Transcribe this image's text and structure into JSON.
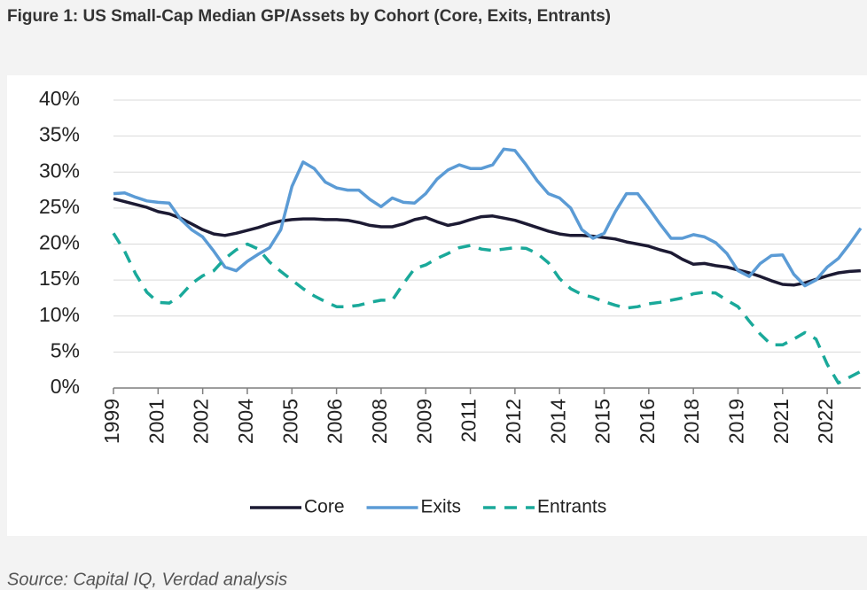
{
  "chart_data": {
    "type": "line",
    "title": "Figure 1: US Small-Cap Median GP/Assets by Cohort (Core, Exits, Entrants)",
    "source": "Source: Capital IQ, Verdad analysis",
    "categories": [
      "1999",
      null,
      null,
      null,
      "2001",
      null,
      null,
      null,
      "2002",
      null,
      null,
      null,
      "2004",
      null,
      null,
      null,
      "2005",
      null,
      null,
      null,
      "2006",
      null,
      null,
      null,
      "2008",
      null,
      null,
      null,
      "2009",
      null,
      null,
      null,
      "2011",
      null,
      null,
      null,
      "2012",
      null,
      null,
      null,
      "2014",
      null,
      null,
      null,
      "2015",
      null,
      null,
      null,
      "2016",
      null,
      null,
      null,
      "2018",
      null,
      null,
      null,
      "2019",
      null,
      null,
      null,
      "2021",
      null,
      null,
      null,
      "2022",
      null,
      null,
      null
    ],
    "series": [
      {
        "name": "Core",
        "color": "#1c1a33",
        "dash": "solid",
        "values": [
          26.3,
          25.9,
          25.5,
          25.1,
          24.5,
          24.2,
          23.6,
          22.8,
          22,
          21.4,
          21.2,
          21.5,
          21.9,
          22.3,
          22.8,
          23.2,
          23.4,
          23.5,
          23.5,
          23.4,
          23.4,
          23.3,
          23,
          22.6,
          22.4,
          22.4,
          22.8,
          23.4,
          23.7,
          23.1,
          22.6,
          22.9,
          23.4,
          23.8,
          23.9,
          23.6,
          23.3,
          22.8,
          22.3,
          21.8,
          21.4,
          21.2,
          21.2,
          21.1,
          20.9,
          20.7,
          20.3,
          20,
          19.7,
          19.2,
          18.8,
          17.9,
          17.2,
          17.3,
          17,
          16.8,
          16.4,
          16,
          15.5,
          14.9,
          14.4,
          14.3,
          14.6,
          15.1,
          15.6,
          16,
          16.2,
          16.3
        ]
      },
      {
        "name": "Exits",
        "color": "#5b9bd5",
        "dash": "solid",
        "values": [
          27,
          27.1,
          26.5,
          26,
          25.8,
          25.7,
          23.5,
          22,
          21,
          19,
          16.8,
          16.3,
          17.6,
          18.6,
          19.5,
          22,
          28,
          31.4,
          30.5,
          28.6,
          27.8,
          27.5,
          27.5,
          26.2,
          25.2,
          26.4,
          25.8,
          25.7,
          27,
          29,
          30.3,
          31,
          30.5,
          30.5,
          31,
          33.2,
          33,
          31,
          28.8,
          27,
          26.4,
          25,
          22,
          20.8,
          21.5,
          24.5,
          27,
          27,
          25,
          22.8,
          20.8,
          20.8,
          21.3,
          21,
          20.2,
          18.7,
          16.3,
          15.5,
          17.3,
          18.4,
          18.5,
          15.8,
          14.2,
          15,
          16.8,
          18,
          20,
          22.2
        ]
      },
      {
        "name": "Entrants",
        "color": "#1aa99a",
        "dash": "dashed",
        "values": [
          21.5,
          19,
          15.8,
          13.3,
          11.9,
          11.8,
          12.8,
          14.5,
          15.6,
          16.3,
          18,
          19.2,
          20,
          19.3,
          17.5,
          16.2,
          15,
          13.8,
          12.8,
          12,
          11.3,
          11.3,
          11.5,
          11.9,
          12.2,
          12.2,
          14.5,
          16.6,
          17.1,
          18,
          18.7,
          19.5,
          19.8,
          19.3,
          19.1,
          19.3,
          19.5,
          19.4,
          18.7,
          17.4,
          15.2,
          13.8,
          13,
          12.6,
          12,
          11.5,
          11.1,
          11.3,
          11.7,
          11.9,
          12.2,
          12.5,
          13.1,
          13.3,
          13.2,
          12.2,
          11.3,
          9.3,
          7.5,
          6,
          6,
          6.8,
          7.7,
          6.8,
          3.3,
          0.7,
          1.5,
          2.3
        ]
      }
    ],
    "ylim": [
      0,
      40
    ],
    "yticks": [
      {
        "value": 0,
        "label": "0%"
      },
      {
        "value": 5,
        "label": "5%"
      },
      {
        "value": 10,
        "label": "10%"
      },
      {
        "value": 15,
        "label": "15%"
      },
      {
        "value": 20,
        "label": "20%"
      },
      {
        "value": 25,
        "label": "25%"
      },
      {
        "value": 30,
        "label": "30%"
      },
      {
        "value": 35,
        "label": "35%"
      },
      {
        "value": 40,
        "label": "40%"
      }
    ],
    "grid": true,
    "legend": "bottom"
  }
}
